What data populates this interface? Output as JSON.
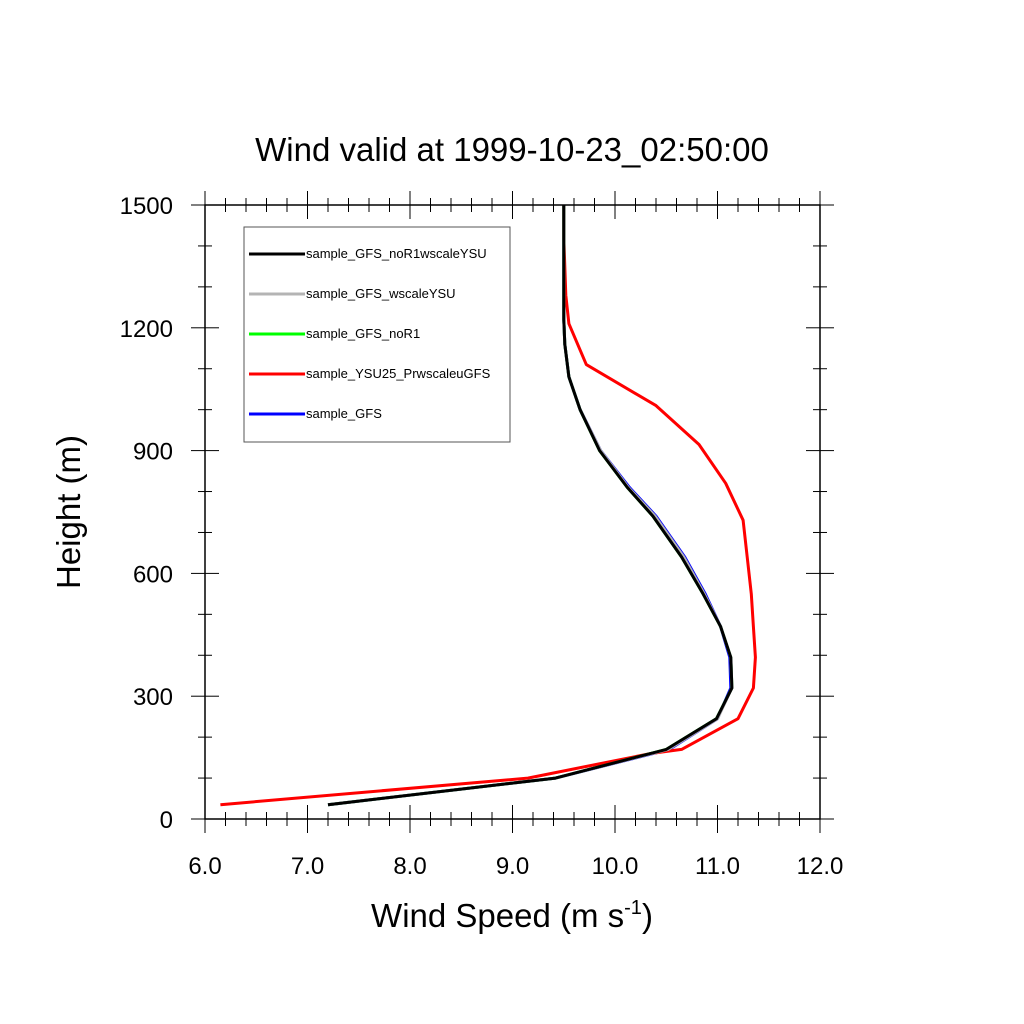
{
  "chart_data": {
    "type": "line",
    "title": "Wind valid at 1999-10-23_02:50:00",
    "xlabel_main": "Wind Speed (m s",
    "xlabel_sup": "-1",
    "xlabel_end": ")",
    "ylabel": "Height (m)",
    "xlim": [
      6.0,
      12.0
    ],
    "ylim": [
      0,
      1500
    ],
    "x_ticks": [
      6.0,
      7.0,
      8.0,
      9.0,
      10.0,
      11.0,
      12.0
    ],
    "x_tick_labels": [
      "6.0",
      "7.0",
      "8.0",
      "9.0",
      "10.0",
      "11.0",
      "12.0"
    ],
    "y_ticks": [
      0,
      300,
      600,
      900,
      1200,
      1500
    ],
    "y_tick_labels": [
      "0",
      "300",
      "600",
      "900",
      "1200",
      "1500"
    ],
    "legend_position": "top-left",
    "series": [
      {
        "name": "sample_GFS",
        "color": "#0000ff",
        "points": [
          [
            7.2,
            35
          ],
          [
            9.42,
            100
          ],
          [
            10.53,
            170
          ],
          [
            11.0,
            245
          ],
          [
            11.13,
            320
          ],
          [
            11.12,
            395
          ],
          [
            11.03,
            470
          ],
          [
            10.88,
            550
          ],
          [
            10.68,
            640
          ],
          [
            10.4,
            740
          ],
          [
            10.14,
            810
          ],
          [
            9.86,
            900
          ],
          [
            9.66,
            1000
          ],
          [
            9.55,
            1080
          ],
          [
            9.51,
            1160
          ],
          [
            9.5,
            1220
          ],
          [
            9.5,
            1280
          ],
          [
            9.5,
            1330
          ],
          [
            9.5,
            1400
          ],
          [
            9.5,
            1450
          ],
          [
            9.5,
            1500
          ]
        ]
      },
      {
        "name": "sample_YSU25_PrwscaleuGFS",
        "color": "#ff0000",
        "points": [
          [
            6.15,
            35
          ],
          [
            9.15,
            100
          ],
          [
            10.35,
            160
          ],
          [
            10.65,
            170
          ],
          [
            11.2,
            245
          ],
          [
            11.35,
            320
          ],
          [
            11.37,
            395
          ],
          [
            11.35,
            470
          ],
          [
            11.33,
            550
          ],
          [
            11.29,
            640
          ],
          [
            11.25,
            730
          ],
          [
            11.08,
            820
          ],
          [
            10.82,
            915
          ],
          [
            10.4,
            1010
          ],
          [
            9.72,
            1110
          ],
          [
            9.55,
            1210
          ],
          [
            9.52,
            1280
          ],
          [
            9.51,
            1350
          ],
          [
            9.5,
            1420
          ],
          [
            9.5,
            1500
          ]
        ]
      },
      {
        "name": "sample_GFS_noR1",
        "color": "#00ff00",
        "points": [
          [
            7.2,
            35
          ],
          [
            9.42,
            100
          ],
          [
            10.5,
            170
          ],
          [
            10.99,
            245
          ],
          [
            11.14,
            320
          ],
          [
            11.13,
            395
          ],
          [
            11.03,
            470
          ],
          [
            10.86,
            550
          ],
          [
            10.65,
            640
          ],
          [
            10.37,
            740
          ],
          [
            10.12,
            810
          ],
          [
            9.85,
            900
          ],
          [
            9.66,
            1000
          ],
          [
            9.55,
            1080
          ],
          [
            9.51,
            1160
          ],
          [
            9.5,
            1220
          ],
          [
            9.5,
            1280
          ],
          [
            9.5,
            1330
          ],
          [
            9.5,
            1400
          ],
          [
            9.5,
            1450
          ],
          [
            9.5,
            1500
          ]
        ]
      },
      {
        "name": "sample_GFS_wscaleYSU",
        "color": "#b4b4b4",
        "points": [
          [
            7.2,
            35
          ],
          [
            9.42,
            100
          ],
          [
            10.52,
            170
          ],
          [
            11.0,
            245
          ],
          [
            11.14,
            320
          ],
          [
            11.13,
            395
          ],
          [
            11.03,
            470
          ],
          [
            10.87,
            550
          ],
          [
            10.67,
            640
          ],
          [
            10.39,
            740
          ],
          [
            10.13,
            810
          ],
          [
            9.86,
            900
          ],
          [
            9.66,
            1000
          ],
          [
            9.55,
            1080
          ],
          [
            9.51,
            1160
          ],
          [
            9.5,
            1220
          ],
          [
            9.5,
            1280
          ],
          [
            9.5,
            1330
          ],
          [
            9.5,
            1400
          ],
          [
            9.5,
            1450
          ],
          [
            9.5,
            1500
          ]
        ]
      },
      {
        "name": "sample_GFS_noR1wscaleYSU",
        "color": "#000000",
        "points": [
          [
            7.2,
            35
          ],
          [
            9.42,
            100
          ],
          [
            10.5,
            170
          ],
          [
            10.99,
            245
          ],
          [
            11.14,
            320
          ],
          [
            11.13,
            395
          ],
          [
            11.03,
            470
          ],
          [
            10.86,
            550
          ],
          [
            10.65,
            640
          ],
          [
            10.37,
            740
          ],
          [
            10.12,
            810
          ],
          [
            9.85,
            900
          ],
          [
            9.66,
            1000
          ],
          [
            9.55,
            1080
          ],
          [
            9.51,
            1160
          ],
          [
            9.5,
            1220
          ],
          [
            9.5,
            1280
          ],
          [
            9.5,
            1330
          ],
          [
            9.5,
            1400
          ],
          [
            9.5,
            1450
          ],
          [
            9.5,
            1500
          ]
        ]
      }
    ],
    "legend_order": [
      "sample_GFS_noR1wscaleYSU",
      "sample_GFS_wscaleYSU",
      "sample_GFS_noR1",
      "sample_YSU25_PrwscaleuGFS",
      "sample_GFS"
    ]
  }
}
